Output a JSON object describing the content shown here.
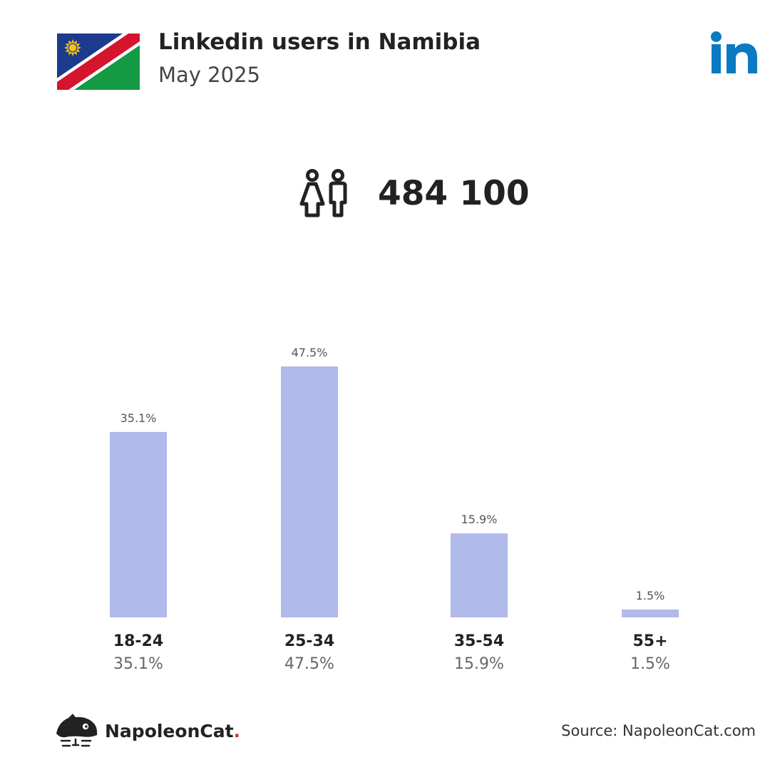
{
  "header": {
    "title": "Linkedin users in Namibia",
    "subtitle": "May 2025",
    "flag_icon": "namibia-flag-icon",
    "platform_icon": "linkedin-icon"
  },
  "summary": {
    "icon": "people-icon",
    "total_users": "484 100"
  },
  "chart_data": {
    "type": "bar",
    "categories": [
      "18-24",
      "25-34",
      "35-54",
      "55+"
    ],
    "values": [
      35.1,
      47.5,
      15.9,
      1.5
    ],
    "value_labels": [
      "35.1%",
      "47.5%",
      "15.9%",
      "1.5%"
    ],
    "unit": "%",
    "ylim": [
      0,
      47.5
    ],
    "grid": false,
    "legend": "none",
    "bar_color": "#b0baeb"
  },
  "footer": {
    "brand_name": "NapoleonCat",
    "brand_dot": ".",
    "source": "Source: NapoleonCat.com",
    "logo_icon": "napoleoncat-logo-icon"
  },
  "colors": {
    "linkedin_blue": "#0a7bc2",
    "brand_red": "#e0302a",
    "text_dark": "#222222",
    "text_muted": "#666666"
  }
}
